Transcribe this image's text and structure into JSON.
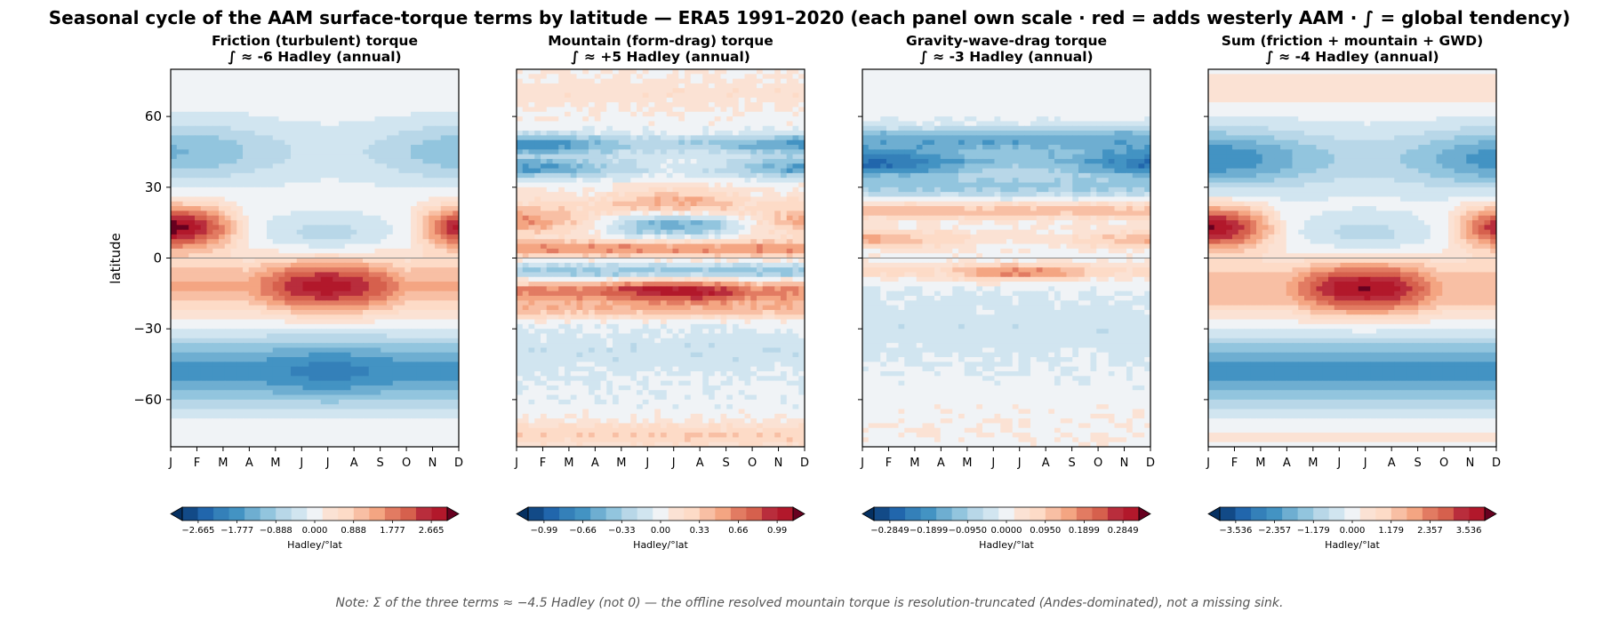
{
  "figure": {
    "title": "Seasonal cycle of the AAM surface-torque terms by latitude — ERA5 1991–2020   (each panel own scale · red = adds westerly AAM · ∫ = global tendency)",
    "note": "Note: Σ of the three terms ≈ −4.5 Hadley (not 0) — the offline resolved mountain torque is resolution-truncated (Andes-dominated), not a missing sink."
  },
  "colors": {
    "colormap": "RdBu_r",
    "contour_line": "#333333",
    "zero_line": "#888888"
  },
  "chart_data": [
    {
      "type": "heatmap",
      "id": "friction",
      "title_line1": "Friction (turbulent) torque",
      "title_line2": "∫ ≈ -6 Hadley (annual)",
      "ylabel": "latitude",
      "x_ticks": [
        "J",
        "F",
        "M",
        "A",
        "M",
        "J",
        "J",
        "A",
        "S",
        "O",
        "N",
        "D"
      ],
      "y_ticks": [
        60,
        30,
        0,
        -30,
        -60
      ],
      "ylim": [
        -80,
        80
      ],
      "colorbar_ticks": [
        "−2.665",
        "−1.777",
        "−0.888",
        "0.000",
        "0.888",
        "1.777",
        "2.665"
      ],
      "colorbar_label": "Hadley/°lat",
      "vmax": 2.665,
      "pattern": "friction"
    },
    {
      "type": "heatmap",
      "id": "mountain",
      "title_line1": "Mountain (form-drag) torque",
      "title_line2": "∫ ≈ +5 Hadley (annual)",
      "x_ticks": [
        "J",
        "F",
        "M",
        "A",
        "M",
        "J",
        "J",
        "A",
        "S",
        "O",
        "N",
        "D"
      ],
      "y_ticks": [
        60,
        30,
        0,
        -30,
        -60
      ],
      "ylim": [
        -80,
        80
      ],
      "colorbar_ticks": [
        "−0.99",
        "−0.66",
        "−0.33",
        "0.00",
        "0.33",
        "0.66",
        "0.99"
      ],
      "colorbar_label": "Hadley/°lat",
      "vmax": 0.99,
      "pattern": "mountain"
    },
    {
      "type": "heatmap",
      "id": "gwd",
      "title_line1": "Gravity-wave-drag torque",
      "title_line2": "∫ ≈ -3 Hadley (annual)",
      "x_ticks": [
        "J",
        "F",
        "M",
        "A",
        "M",
        "J",
        "J",
        "A",
        "S",
        "O",
        "N",
        "D"
      ],
      "y_ticks": [
        60,
        30,
        0,
        -30,
        -60
      ],
      "ylim": [
        -80,
        80
      ],
      "colorbar_ticks": [
        "−0.2849",
        "−0.1899",
        "−0.0950",
        "0.0000",
        "0.0950",
        "0.1899",
        "0.2849"
      ],
      "colorbar_label": "Hadley/°lat",
      "vmax": 0.2849,
      "pattern": "gwd"
    },
    {
      "type": "heatmap",
      "id": "sum",
      "title_line1": "Sum (friction + mountain + GWD)",
      "title_line2": "∫ ≈ -4 Hadley (annual)",
      "x_ticks": [
        "J",
        "F",
        "M",
        "A",
        "M",
        "J",
        "J",
        "A",
        "S",
        "O",
        "N",
        "D"
      ],
      "y_ticks": [
        60,
        30,
        0,
        -30,
        -60
      ],
      "ylim": [
        -80,
        80
      ],
      "colorbar_ticks": [
        "−3.536",
        "−2.357",
        "−1.179",
        "0.000",
        "1.179",
        "2.357",
        "3.536"
      ],
      "colorbar_label": "Hadley/°lat",
      "vmax": 3.536,
      "pattern": "sum"
    }
  ]
}
